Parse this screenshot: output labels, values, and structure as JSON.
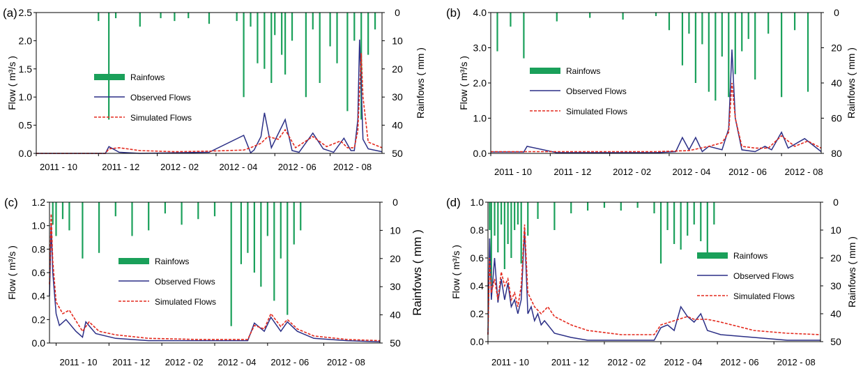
{
  "colors": {
    "rain": "#1aa05a",
    "observed": "#2b2f86",
    "simulated": "#e42a1e"
  },
  "chart_data": [
    {
      "type": "line",
      "panel_label": "(a)",
      "ylabel": "Flow ( m³/s )",
      "y2label": "Rainfows ( mm )",
      "ylim": [
        0,
        2.5
      ],
      "yticks": [
        "0.0",
        "0.5",
        "1.0",
        "1.5",
        "2.0",
        "2.5"
      ],
      "y2lim": [
        0,
        50
      ],
      "y2ticks": [
        "0",
        "10",
        "20",
        "30",
        "40",
        "50"
      ],
      "xlim": [
        0,
        1.0
      ],
      "xticks": [
        {
          "x": 0,
          "label": "2011 - 10"
        },
        {
          "x": 0.18,
          "label": "2011 - 12"
        },
        {
          "x": 0.35,
          "label": "2012 - 02"
        },
        {
          "x": 0.52,
          "label": "2012 - 04"
        },
        {
          "x": 0.69,
          "label": "2012 - 06"
        },
        {
          "x": 0.85,
          "label": "2012 - 08"
        }
      ],
      "legend": [
        "Rainfows",
        "Observed Flows",
        "Simulated Flows"
      ],
      "legend_placement": "center-left",
      "series": [
        {
          "name": "Observed Flows",
          "x": [
            0,
            0.1,
            0.2,
            0.21,
            0.24,
            0.3,
            0.4,
            0.5,
            0.6,
            0.62,
            0.63,
            0.65,
            0.66,
            0.68,
            0.72,
            0.74,
            0.76,
            0.8,
            0.83,
            0.86,
            0.89,
            0.91,
            0.92,
            0.93,
            0.935,
            0.94,
            0.945,
            0.96,
            1.0
          ],
          "y": [
            0,
            0,
            0,
            0.12,
            0.02,
            0.0,
            0.01,
            0.02,
            0.32,
            0.01,
            0.06,
            0.3,
            0.72,
            0.1,
            0.6,
            0.05,
            0.02,
            0.36,
            0.08,
            0.02,
            0.27,
            0.05,
            0.05,
            0.6,
            2.02,
            1.2,
            0.25,
            0.08,
            0.03
          ]
        },
        {
          "name": "Simulated Flows",
          "x": [
            0,
            0.2,
            0.21,
            0.24,
            0.3,
            0.4,
            0.5,
            0.6,
            0.62,
            0.65,
            0.67,
            0.7,
            0.72,
            0.75,
            0.8,
            0.84,
            0.88,
            0.9,
            0.92,
            0.93,
            0.94,
            0.945,
            0.96,
            1.0
          ],
          "y": [
            0,
            0,
            0.08,
            0.1,
            0.05,
            0.03,
            0.04,
            0.06,
            0.1,
            0.18,
            0.3,
            0.25,
            0.42,
            0.1,
            0.3,
            0.12,
            0.22,
            0.1,
            0.1,
            0.4,
            1.78,
            1.0,
            0.2,
            0.1
          ]
        },
        {
          "name": "Rainfows",
          "style": "bars",
          "x": [
            0.18,
            0.21,
            0.23,
            0.3,
            0.36,
            0.4,
            0.44,
            0.5,
            0.58,
            0.6,
            0.62,
            0.64,
            0.66,
            0.68,
            0.69,
            0.71,
            0.72,
            0.74,
            0.78,
            0.8,
            0.82,
            0.85,
            0.87,
            0.9,
            0.92,
            0.94,
            0.96,
            0.98
          ],
          "y": [
            3,
            38,
            2,
            5,
            2,
            3,
            2,
            4,
            3,
            30,
            5,
            18,
            20,
            25,
            8,
            15,
            22,
            10,
            30,
            6,
            25,
            12,
            18,
            35,
            10,
            38,
            15,
            6
          ]
        }
      ]
    },
    {
      "type": "line",
      "panel_label": "(b)",
      "ylabel": "Flow ( m³/s )",
      "y2label": "Rainfows ( mm )",
      "ylim": [
        0,
        4.0
      ],
      "yticks": [
        "0.0",
        "1.0",
        "2.0",
        "3.0",
        "4.0"
      ],
      "y2lim": [
        0,
        80
      ],
      "y2ticks": [
        "0",
        "20",
        "40",
        "60",
        "80"
      ],
      "xlim": [
        0,
        1.0
      ],
      "xticks": [
        {
          "x": 0,
          "label": "2011 - 10"
        },
        {
          "x": 0.18,
          "label": "2011 - 12"
        },
        {
          "x": 0.36,
          "label": "2012 - 02"
        },
        {
          "x": 0.54,
          "label": "2012 - 04"
        },
        {
          "x": 0.71,
          "label": "2012 - 06"
        },
        {
          "x": 0.88,
          "label": "2012 - 08"
        }
      ],
      "legend": [
        "Rainfows",
        "Observed Flows",
        "Simulated Flows"
      ],
      "legend_placement": "center-left",
      "series": [
        {
          "name": "Observed Flows",
          "x": [
            0,
            0.1,
            0.11,
            0.2,
            0.5,
            0.56,
            0.58,
            0.6,
            0.62,
            0.64,
            0.66,
            0.7,
            0.72,
            0.73,
            0.74,
            0.76,
            0.8,
            0.83,
            0.85,
            0.88,
            0.9,
            0.95,
            1.0
          ],
          "y": [
            0.04,
            0.04,
            0.2,
            0.02,
            0.02,
            0.05,
            0.45,
            0.1,
            0.45,
            0.05,
            0.2,
            0.1,
            0.7,
            2.95,
            1.0,
            0.1,
            0.05,
            0.2,
            0.1,
            0.6,
            0.15,
            0.42,
            0.05
          ]
        },
        {
          "name": "Simulated Flows",
          "x": [
            0,
            0.2,
            0.5,
            0.6,
            0.66,
            0.7,
            0.72,
            0.73,
            0.74,
            0.76,
            0.8,
            0.84,
            0.88,
            0.92,
            0.96,
            1.0
          ],
          "y": [
            0.05,
            0.05,
            0.05,
            0.08,
            0.2,
            0.3,
            0.6,
            2.0,
            1.0,
            0.2,
            0.15,
            0.15,
            0.5,
            0.2,
            0.35,
            0.15
          ]
        },
        {
          "name": "Rainfows",
          "style": "bars",
          "x": [
            0.02,
            0.06,
            0.1,
            0.2,
            0.3,
            0.4,
            0.5,
            0.54,
            0.58,
            0.6,
            0.62,
            0.64,
            0.66,
            0.68,
            0.7,
            0.72,
            0.74,
            0.76,
            0.78,
            0.8,
            0.84,
            0.88,
            0.92,
            0.96
          ],
          "y": [
            22,
            8,
            26,
            5,
            3,
            4,
            2,
            10,
            30,
            12,
            40,
            18,
            45,
            50,
            25,
            48,
            35,
            22,
            15,
            38,
            12,
            48,
            10,
            45
          ]
        }
      ]
    },
    {
      "type": "line",
      "panel_label": "(c)",
      "ylabel": "Flow ( m³/s )",
      "y2label": "Rainfows ( mm )",
      "ylim": [
        0,
        1.2
      ],
      "yticks": [
        "0.0",
        "0.2",
        "0.4",
        "0.6",
        "0.8",
        "1.0",
        "1.2"
      ],
      "y2lim": [
        0,
        50
      ],
      "y2ticks": [
        "0",
        "10",
        "20",
        "30",
        "40",
        "50"
      ],
      "xlim": [
        0,
        1.0
      ],
      "xticks": [
        {
          "x": 0.02,
          "label": "2011 - 10"
        },
        {
          "x": 0.18,
          "label": "2011 - 12"
        },
        {
          "x": 0.34,
          "label": "2012 - 02"
        },
        {
          "x": 0.5,
          "label": "2012 - 04"
        },
        {
          "x": 0.66,
          "label": "2012 - 06"
        },
        {
          "x": 0.83,
          "label": "2012 - 08"
        }
      ],
      "legend": [
        "Rainfows",
        "Observed Flows",
        "Simulated Flows"
      ],
      "legend_placement": "center",
      "series": [
        {
          "name": "Observed Flows",
          "x": [
            0,
            0.005,
            0.01,
            0.02,
            0.03,
            0.05,
            0.08,
            0.1,
            0.11,
            0.14,
            0.2,
            0.3,
            0.45,
            0.6,
            0.62,
            0.65,
            0.67,
            0.7,
            0.72,
            0.75,
            0.8,
            0.9,
            1.0
          ],
          "y": [
            0.4,
            1.0,
            0.6,
            0.25,
            0.15,
            0.2,
            0.1,
            0.05,
            0.18,
            0.08,
            0.04,
            0.02,
            0.02,
            0.02,
            0.17,
            0.1,
            0.22,
            0.1,
            0.18,
            0.1,
            0.04,
            0.02,
            0.01
          ]
        },
        {
          "name": "Simulated Flows",
          "x": [
            0,
            0.005,
            0.01,
            0.02,
            0.04,
            0.06,
            0.1,
            0.12,
            0.15,
            0.2,
            0.3,
            0.45,
            0.6,
            0.62,
            0.65,
            0.67,
            0.7,
            0.72,
            0.75,
            0.8,
            0.9,
            1.0
          ],
          "y": [
            0.5,
            1.1,
            0.7,
            0.35,
            0.25,
            0.28,
            0.1,
            0.18,
            0.1,
            0.07,
            0.04,
            0.03,
            0.03,
            0.15,
            0.12,
            0.25,
            0.14,
            0.2,
            0.12,
            0.06,
            0.03,
            0.02
          ]
        },
        {
          "name": "Rainfows",
          "style": "bars",
          "x": [
            0.01,
            0.02,
            0.04,
            0.06,
            0.1,
            0.15,
            0.2,
            0.25,
            0.3,
            0.35,
            0.4,
            0.45,
            0.5,
            0.55,
            0.58,
            0.6,
            0.62,
            0.64,
            0.66,
            0.68,
            0.7,
            0.72,
            0.74,
            0.76
          ],
          "y": [
            8,
            12,
            6,
            10,
            20,
            18,
            5,
            12,
            10,
            4,
            8,
            6,
            5,
            44,
            22,
            18,
            25,
            30,
            12,
            35,
            20,
            40,
            15,
            10
          ]
        }
      ]
    },
    {
      "type": "line",
      "panel_label": "(d)",
      "ylabel": "Flow ( m³/s )",
      "y2label": "Rainfows ( mm )",
      "ylim": [
        0,
        1.0
      ],
      "yticks": [
        "0.0",
        "0.2",
        "0.4",
        "0.6",
        "0.8",
        "1.0"
      ],
      "y2lim": [
        0,
        50
      ],
      "y2ticks": [
        "0",
        "10",
        "20",
        "30",
        "40",
        "50"
      ],
      "xlim": [
        0,
        1.0
      ],
      "xticks": [
        {
          "x": 0.0,
          "label": "2011 - 10"
        },
        {
          "x": 0.18,
          "label": "2011 - 12"
        },
        {
          "x": 0.35,
          "label": "2012 - 02"
        },
        {
          "x": 0.52,
          "label": "2012 - 04"
        },
        {
          "x": 0.69,
          "label": "2012 - 06"
        },
        {
          "x": 0.86,
          "label": "2012 - 08"
        }
      ],
      "legend": [
        "Rainfows",
        "Observed Flows",
        "Simulated Flows"
      ],
      "legend_placement": "right",
      "series": [
        {
          "name": "Observed Flows",
          "x": [
            0,
            0.005,
            0.01,
            0.02,
            0.03,
            0.04,
            0.05,
            0.06,
            0.07,
            0.08,
            0.09,
            0.1,
            0.11,
            0.12,
            0.13,
            0.14,
            0.15,
            0.16,
            0.17,
            0.2,
            0.25,
            0.3,
            0.4,
            0.45,
            0.5,
            0.52,
            0.54,
            0.56,
            0.58,
            0.6,
            0.62,
            0.64,
            0.66,
            0.7,
            0.8,
            0.9,
            1.0
          ],
          "y": [
            0.05,
            0.74,
            0.3,
            0.6,
            0.28,
            0.45,
            0.3,
            0.42,
            0.25,
            0.3,
            0.2,
            0.3,
            0.8,
            0.2,
            0.25,
            0.15,
            0.2,
            0.12,
            0.15,
            0.06,
            0.03,
            0.01,
            0.01,
            0.01,
            0.01,
            0.1,
            0.12,
            0.08,
            0.25,
            0.18,
            0.14,
            0.2,
            0.08,
            0.05,
            0.03,
            0.01,
            0.01
          ]
        },
        {
          "name": "Simulated Flows",
          "x": [
            0,
            0.005,
            0.01,
            0.02,
            0.03,
            0.04,
            0.05,
            0.06,
            0.07,
            0.08,
            0.09,
            0.1,
            0.11,
            0.12,
            0.14,
            0.16,
            0.18,
            0.2,
            0.25,
            0.3,
            0.4,
            0.5,
            0.52,
            0.56,
            0.6,
            0.62,
            0.66,
            0.7,
            0.8,
            0.9,
            1.0
          ],
          "y": [
            0.05,
            0.6,
            0.35,
            0.45,
            0.3,
            0.5,
            0.4,
            0.45,
            0.3,
            0.35,
            0.25,
            0.4,
            0.84,
            0.35,
            0.25,
            0.2,
            0.25,
            0.18,
            0.12,
            0.08,
            0.05,
            0.05,
            0.12,
            0.15,
            0.18,
            0.16,
            0.16,
            0.14,
            0.08,
            0.06,
            0.05
          ]
        },
        {
          "name": "Rainfows",
          "style": "bars",
          "x": [
            0.005,
            0.01,
            0.02,
            0.03,
            0.04,
            0.05,
            0.06,
            0.07,
            0.08,
            0.09,
            0.1,
            0.12,
            0.15,
            0.2,
            0.25,
            0.3,
            0.35,
            0.4,
            0.45,
            0.5,
            0.52,
            0.54,
            0.56,
            0.58,
            0.6,
            0.62,
            0.64,
            0.66,
            0.68
          ],
          "y": [
            10,
            30,
            12,
            18,
            8,
            24,
            15,
            20,
            10,
            8,
            22,
            12,
            6,
            10,
            4,
            3,
            2,
            3,
            2,
            4,
            22,
            10,
            15,
            17,
            12,
            8,
            14,
            18,
            8
          ]
        }
      ]
    }
  ]
}
